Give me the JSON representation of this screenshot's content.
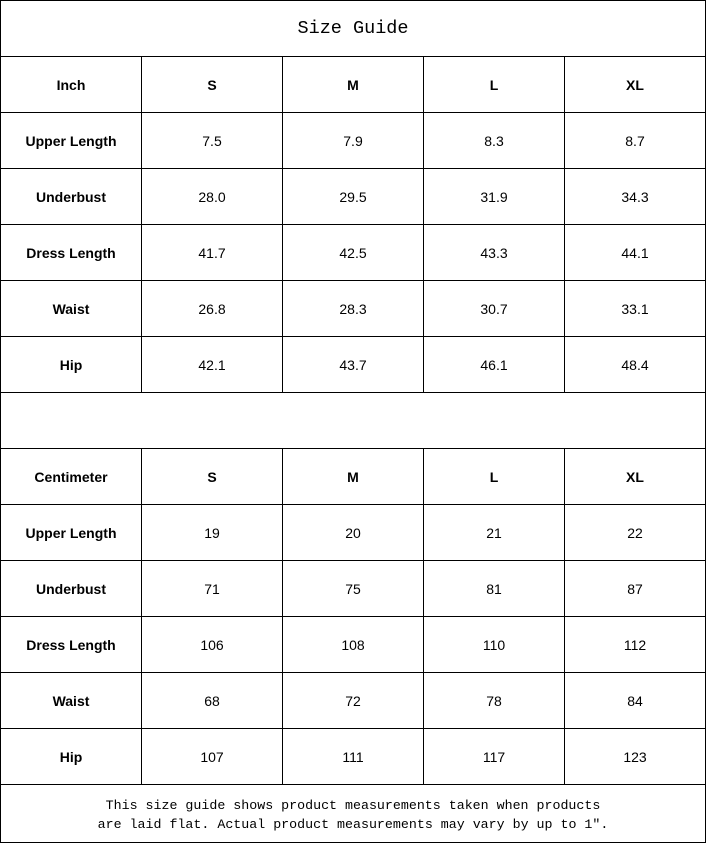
{
  "title": "Size Guide",
  "tables": [
    {
      "unit": "Inch",
      "sizes": [
        "S",
        "M",
        "L",
        "XL"
      ],
      "rows": [
        {
          "label": "Upper Length",
          "values": [
            "7.5",
            "7.9",
            "8.3",
            "8.7"
          ]
        },
        {
          "label": "Underbust",
          "values": [
            "28.0",
            "29.5",
            "31.9",
            "34.3"
          ]
        },
        {
          "label": "Dress Length",
          "values": [
            "41.7",
            "42.5",
            "43.3",
            "44.1"
          ]
        },
        {
          "label": "Waist",
          "values": [
            "26.8",
            "28.3",
            "30.7",
            "33.1"
          ]
        },
        {
          "label": "Hip",
          "values": [
            "42.1",
            "43.7",
            "46.1",
            "48.4"
          ]
        }
      ]
    },
    {
      "unit": "Centimeter",
      "sizes": [
        "S",
        "M",
        "L",
        "XL"
      ],
      "rows": [
        {
          "label": "Upper Length",
          "values": [
            "19",
            "20",
            "21",
            "22"
          ]
        },
        {
          "label": "Underbust",
          "values": [
            "71",
            "75",
            "81",
            "87"
          ]
        },
        {
          "label": "Dress Length",
          "values": [
            "106",
            "108",
            "110",
            "112"
          ]
        },
        {
          "label": "Waist",
          "values": [
            "68",
            "72",
            "78",
            "84"
          ]
        },
        {
          "label": "Hip",
          "values": [
            "107",
            "111",
            "117",
            "123"
          ]
        }
      ]
    }
  ],
  "note": {
    "line1": "This size guide shows product measurements taken when products",
    "line2": "are laid flat. Actual product measurements may vary by up to 1″."
  }
}
